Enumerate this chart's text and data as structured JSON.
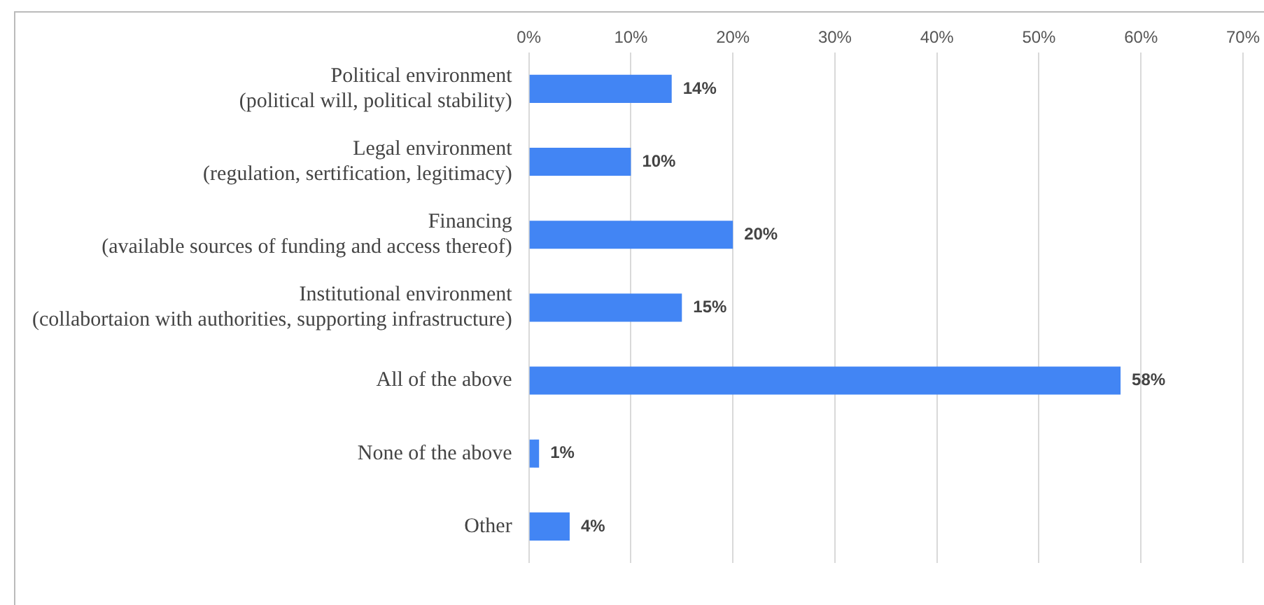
{
  "chart_data": {
    "type": "bar",
    "orientation": "horizontal",
    "categories": [
      "Political environment\n(political will, political stability)",
      "Legal environment\n(regulation, sertification, legitimacy)",
      "Financing\n(available sources of funding and access thereof)",
      "Institutional environment\n(collabortaion with authorities, supporting infrastructure)",
      "All of the above",
      "None of the above",
      "Other"
    ],
    "values": [
      14,
      10,
      20,
      15,
      58,
      1,
      4
    ],
    "value_labels": [
      "14%",
      "10%",
      "20%",
      "15%",
      "58%",
      "1%",
      "4%"
    ],
    "color": "#4285f4",
    "xlim": [
      0,
      70
    ],
    "xticks": [
      {
        "value": 0,
        "label": "0%"
      },
      {
        "value": 10,
        "label": "10%"
      },
      {
        "value": 20,
        "label": "20%"
      },
      {
        "value": 30,
        "label": "30%"
      },
      {
        "value": 40,
        "label": "40%"
      },
      {
        "value": 50,
        "label": "50%"
      },
      {
        "value": 60,
        "label": "60%"
      },
      {
        "value": 70,
        "label": "70%"
      }
    ],
    "grid": "x"
  }
}
